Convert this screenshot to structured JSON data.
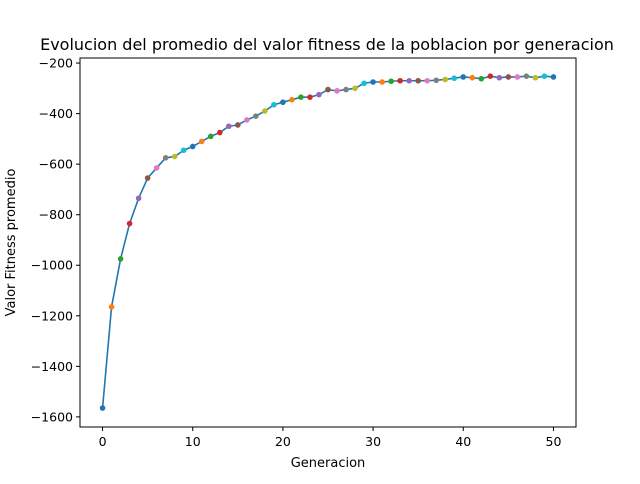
{
  "chart_data": {
    "type": "line",
    "title": "Evolucion del promedio del valor fitness de la poblacion por generacion",
    "xlabel": "Generacion",
    "ylabel": "Valor Fitness promedio",
    "xlim": [
      -2.5,
      52.5
    ],
    "ylim": [
      -1640,
      -180
    ],
    "xticks": [
      0,
      10,
      20,
      30,
      40,
      50
    ],
    "yticks": [
      -1600,
      -1400,
      -1200,
      -1000,
      -800,
      -600,
      -400,
      -200
    ],
    "grid": false,
    "line_color": "#1f77b4",
    "marker_colors": [
      "#1f77b4",
      "#ff7f0e",
      "#2ca02c",
      "#d62728",
      "#9467bd",
      "#8c564b",
      "#e377c2",
      "#7f7f7f",
      "#bcbd22",
      "#17becf"
    ],
    "series": [
      {
        "x": [
          0,
          1,
          2,
          3,
          4,
          5,
          6,
          7,
          8,
          9,
          10,
          11,
          12,
          13,
          14,
          15,
          16,
          17,
          18,
          19,
          20,
          21,
          22,
          23,
          24,
          25,
          26,
          27,
          28,
          29,
          30,
          31,
          32,
          33,
          34,
          35,
          36,
          37,
          38,
          39,
          40,
          41,
          42,
          43,
          44,
          45,
          46,
          47,
          48,
          49,
          50
        ],
        "values": [
          -1565,
          -1165,
          -975,
          -835,
          -735,
          -655,
          -615,
          -575,
          -570,
          -545,
          -530,
          -510,
          -490,
          -475,
          -450,
          -445,
          -425,
          -410,
          -390,
          -365,
          -355,
          -345,
          -335,
          -335,
          -325,
          -305,
          -310,
          -305,
          -300,
          -280,
          -275,
          -275,
          -272,
          -270,
          -270,
          -270,
          -270,
          -268,
          -265,
          -260,
          -255,
          -258,
          -262,
          -252,
          -258,
          -255,
          -255,
          -252,
          -258,
          -252,
          -255
        ]
      }
    ]
  }
}
